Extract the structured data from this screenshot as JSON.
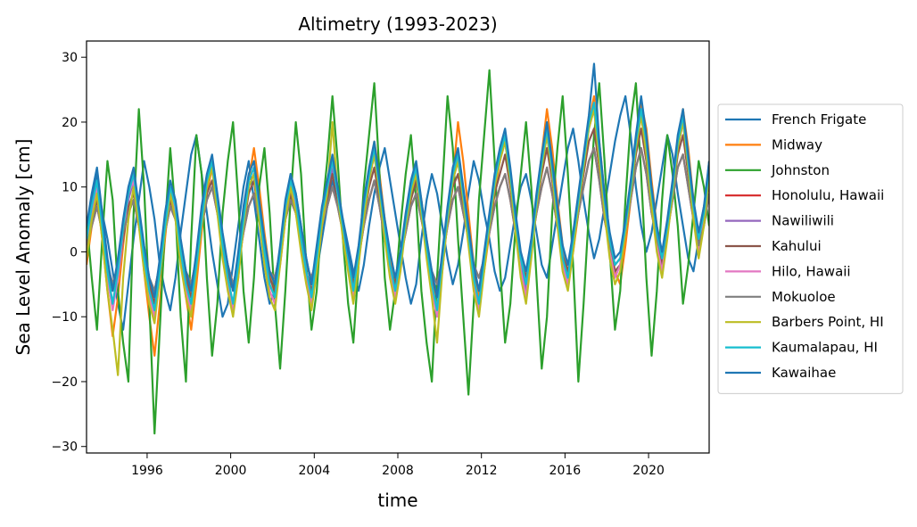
{
  "chart_data": {
    "type": "line",
    "title": "Altimetry (1993-2023)",
    "xlabel": "time",
    "ylabel": "Sea Level Anomaly [cm]",
    "x_start": 1993.1,
    "x_end": 2022.9,
    "xlim": [
      1993.1,
      2022.9
    ],
    "ylim": [
      -31,
      32.5
    ],
    "xticks": [
      1996,
      2000,
      2004,
      2008,
      2012,
      2016,
      2020
    ],
    "xtick_labels": [
      "1996",
      "2000",
      "2004",
      "2008",
      "2012",
      "2016",
      "2020"
    ],
    "yticks": [
      -30,
      -20,
      -10,
      0,
      10,
      20,
      30
    ],
    "ytick_labels": [
      "−30",
      "−20",
      "−10",
      "0",
      "10",
      "20",
      "30"
    ],
    "grid": false,
    "legend_position": "right-outside",
    "series": [
      {
        "name": "French Frigate",
        "color": "#1f77b4",
        "values": [
          3,
          8,
          12,
          6,
          2,
          -3,
          -8,
          -12,
          -5,
          2,
          8,
          14,
          10,
          5,
          -2,
          -6,
          -9,
          -4,
          3,
          9,
          15,
          18,
          12,
          6,
          0,
          -5,
          -10,
          -8,
          -2,
          4,
          10,
          14,
          8,
          2,
          -4,
          -8,
          -6,
          0,
          6,
          12,
          9,
          4,
          -1,
          -5,
          -3,
          2,
          7,
          11,
          8,
          5,
          1,
          -3,
          -6,
          -2,
          4,
          9,
          13,
          16,
          11,
          6,
          1,
          -4,
          -8,
          -5,
          2,
          8,
          12,
          9,
          4,
          -1,
          -5,
          -2,
          3,
          9,
          14,
          11,
          6,
          2,
          -3,
          -6,
          -4,
          1,
          6,
          10,
          12,
          8,
          3,
          -2,
          -4,
          1,
          6,
          11,
          16,
          19,
          14,
          8,
          3,
          -1,
          2,
          7,
          12,
          17,
          21,
          24,
          18,
          10,
          4,
          0,
          3,
          8,
          13,
          18,
          15,
          9,
          4,
          -1,
          -3,
          2,
          7,
          11
        ]
      },
      {
        "name": "Midway",
        "color": "#ff7f0e",
        "values": [
          -2,
          4,
          9,
          2,
          -6,
          -13,
          -7,
          1,
          8,
          12,
          6,
          -3,
          -10,
          -16,
          -8,
          2,
          10,
          6,
          -1,
          -7,
          -12,
          -5,
          3,
          9,
          13,
          7,
          1,
          -5,
          -9,
          -4,
          4,
          11,
          16,
          10,
          3,
          -3,
          -7,
          -2,
          5,
          9,
          6,
          2,
          -4,
          -8,
          -3,
          4,
          10,
          14,
          9,
          3,
          -2,
          -6,
          0,
          7,
          12,
          17,
          12,
          5,
          -1,
          -5,
          -2,
          4,
          9,
          13,
          8,
          2,
          -4,
          -9,
          -3,
          5,
          11,
          20,
          14,
          6,
          -2,
          -7,
          -3,
          3,
          9,
          14,
          18,
          12,
          4,
          -3,
          -6,
          1,
          8,
          15,
          22,
          16,
          8,
          1,
          -4,
          0,
          6,
          13,
          20,
          24,
          17,
          9,
          2,
          -3,
          -5,
          1,
          8,
          16,
          23,
          19,
          11,
          4,
          -2,
          3,
          10,
          17,
          22,
          16,
          8,
          2,
          6,
          14
        ]
      },
      {
        "name": "Johnston",
        "color": "#2ca02c",
        "values": [
          5,
          -4,
          -12,
          2,
          14,
          8,
          -6,
          -14,
          -20,
          6,
          22,
          10,
          -8,
          -28,
          -12,
          4,
          16,
          6,
          -10,
          -20,
          2,
          18,
          12,
          -4,
          -16,
          -8,
          6,
          14,
          20,
          8,
          -6,
          -14,
          -4,
          10,
          16,
          6,
          -8,
          -18,
          -6,
          8,
          20,
          12,
          -2,
          -12,
          -6,
          6,
          14,
          24,
          14,
          2,
          -8,
          -14,
          -2,
          10,
          18,
          26,
          12,
          -4,
          -12,
          -6,
          4,
          12,
          18,
          8,
          -6,
          -14,
          -20,
          -4,
          10,
          24,
          16,
          2,
          -10,
          -22,
          -8,
          8,
          18,
          28,
          14,
          -2,
          -14,
          -8,
          4,
          12,
          20,
          10,
          -4,
          -18,
          -10,
          6,
          16,
          24,
          12,
          -2,
          -20,
          -8,
          6,
          18,
          26,
          14,
          0,
          -12,
          -6,
          8,
          20,
          26,
          12,
          -4,
          -16,
          -6,
          8,
          18,
          12,
          4,
          -8,
          -2,
          6,
          14,
          10,
          4
        ]
      },
      {
        "name": "Honolulu, Hawaii",
        "color": "#d62728",
        "values": [
          1,
          4,
          7,
          3,
          -2,
          -5,
          -2,
          3,
          6,
          8,
          4,
          0,
          -4,
          -6,
          -2,
          3,
          7,
          5,
          1,
          -3,
          -5,
          -1,
          4,
          8,
          10,
          6,
          2,
          -2,
          -5,
          -2,
          3,
          7,
          9,
          5,
          1,
          -3,
          -4,
          0,
          5,
          8,
          6,
          2,
          -2,
          -4,
          -1,
          4,
          7,
          10,
          7,
          3,
          -1,
          -4,
          -1,
          4,
          8,
          11,
          7,
          2,
          -2,
          -4,
          -1,
          3,
          7,
          9,
          5,
          1,
          -3,
          -5,
          -1,
          4,
          8,
          10,
          6,
          2,
          -2,
          -4,
          -1,
          3,
          7,
          10,
          12,
          8,
          3,
          -1,
          -3,
          1,
          6,
          10,
          13,
          9,
          4,
          0,
          -2,
          1,
          6,
          10,
          14,
          16,
          11,
          5,
          1,
          -2,
          -1,
          3,
          8,
          13,
          16,
          12,
          6,
          2,
          -1,
          3,
          8,
          13,
          15,
          10,
          5,
          1,
          4,
          9
        ]
      },
      {
        "name": "Nawiliwili",
        "color": "#9467bd",
        "values": [
          2,
          6,
          10,
          4,
          -3,
          -8,
          -4,
          2,
          8,
          11,
          5,
          -1,
          -6,
          -10,
          -4,
          3,
          9,
          6,
          0,
          -5,
          -9,
          -3,
          4,
          10,
          13,
          7,
          1,
          -4,
          -8,
          -3,
          4,
          10,
          12,
          6,
          0,
          -5,
          -7,
          -1,
          6,
          10,
          7,
          2,
          -3,
          -7,
          -2,
          5,
          9,
          13,
          8,
          3,
          -2,
          -6,
          -1,
          6,
          11,
          15,
          9,
          3,
          -2,
          -6,
          -2,
          4,
          9,
          12,
          6,
          0,
          -5,
          -9,
          -2,
          5,
          11,
          14,
          8,
          2,
          -4,
          -8,
          -2,
          4,
          10,
          14,
          17,
          11,
          4,
          -2,
          -6,
          0,
          7,
          13,
          18,
          12,
          5,
          -1,
          -4,
          1,
          7,
          13,
          19,
          22,
          15,
          7,
          1,
          -3,
          -2,
          3,
          9,
          16,
          21,
          16,
          8,
          2,
          -2,
          3,
          9,
          16,
          20,
          13,
          6,
          1,
          5,
          12
        ]
      },
      {
        "name": "Kahului",
        "color": "#8c564b",
        "values": [
          1,
          5,
          8,
          3,
          -2,
          -6,
          -3,
          2,
          7,
          9,
          4,
          -1,
          -5,
          -8,
          -3,
          3,
          8,
          5,
          0,
          -4,
          -7,
          -2,
          4,
          9,
          11,
          6,
          1,
          -3,
          -6,
          -2,
          4,
          9,
          11,
          5,
          0,
          -4,
          -6,
          -1,
          5,
          9,
          6,
          2,
          -3,
          -6,
          -2,
          4,
          8,
          12,
          8,
          3,
          -1,
          -5,
          -1,
          5,
          10,
          13,
          8,
          3,
          -2,
          -5,
          -1,
          4,
          8,
          11,
          6,
          1,
          -4,
          -7,
          -2,
          5,
          10,
          12,
          7,
          2,
          -3,
          -6,
          -1,
          4,
          9,
          12,
          15,
          10,
          4,
          -1,
          -4,
          1,
          7,
          12,
          16,
          11,
          5,
          0,
          -3,
          1,
          7,
          12,
          17,
          19,
          13,
          6,
          1,
          -3,
          -2,
          3,
          9,
          15,
          19,
          14,
          7,
          2,
          -2,
          3,
          9,
          15,
          18,
          12,
          6,
          1,
          5,
          11
        ]
      },
      {
        "name": "Hilo, Hawaii",
        "color": "#e377c2",
        "values": [
          0,
          6,
          10,
          4,
          -4,
          -9,
          -4,
          3,
          9,
          11,
          5,
          -2,
          -7,
          -10,
          -3,
          4,
          10,
          6,
          -1,
          -6,
          -9,
          -2,
          5,
          11,
          14,
          7,
          0,
          -5,
          -9,
          -3,
          5,
          11,
          13,
          6,
          -1,
          -6,
          -8,
          -1,
          6,
          11,
          7,
          1,
          -4,
          -8,
          -2,
          5,
          10,
          14,
          9,
          3,
          -2,
          -7,
          -1,
          6,
          12,
          16,
          10,
          3,
          -3,
          -7,
          -2,
          5,
          10,
          13,
          7,
          0,
          -6,
          -10,
          -2,
          6,
          12,
          15,
          9,
          2,
          -5,
          -9,
          -2,
          5,
          11,
          15,
          18,
          12,
          4,
          -3,
          -7,
          0,
          8,
          14,
          19,
          13,
          5,
          -2,
          -5,
          1,
          8,
          14,
          20,
          23,
          15,
          7,
          0,
          -4,
          -2,
          4,
          10,
          17,
          22,
          16,
          8,
          1,
          -3,
          3,
          10,
          17,
          21,
          14,
          6,
          0,
          5,
          13
        ]
      },
      {
        "name": "Mokuoloe",
        "color": "#7f7f7f",
        "values": [
          1,
          4,
          7,
          3,
          -2,
          -5,
          -2,
          3,
          6,
          8,
          4,
          0,
          -4,
          -6,
          -2,
          3,
          7,
          5,
          1,
          -3,
          -5,
          -1,
          4,
          8,
          10,
          6,
          2,
          -2,
          -5,
          -2,
          3,
          7,
          9,
          5,
          1,
          -3,
          -4,
          0,
          5,
          8,
          6,
          2,
          -2,
          -4,
          -1,
          4,
          7,
          10,
          7,
          3,
          -1,
          -4,
          -1,
          4,
          8,
          11,
          7,
          2,
          -2,
          -4,
          -1,
          3,
          7,
          9,
          5,
          1,
          -3,
          -5,
          -1,
          4,
          8,
          10,
          6,
          2,
          -2,
          -4,
          -1,
          3,
          7,
          10,
          12,
          8,
          3,
          -1,
          -3,
          1,
          6,
          10,
          13,
          9,
          4,
          0,
          -2,
          1,
          6,
          10,
          14,
          16,
          11,
          5,
          1,
          -2,
          -1,
          3,
          8,
          13,
          16,
          12,
          6,
          2,
          -1,
          3,
          8,
          13,
          15,
          10,
          5,
          1,
          4,
          9
        ]
      },
      {
        "name": "Barbers Point, HI",
        "color": "#bcbd22",
        "values": [
          -1,
          5,
          9,
          2,
          -6,
          -12,
          -19,
          -4,
          5,
          10,
          4,
          -3,
          -8,
          -11,
          -4,
          3,
          9,
          5,
          -2,
          -7,
          -10,
          -3,
          4,
          10,
          13,
          6,
          -1,
          -6,
          -10,
          -4,
          4,
          10,
          12,
          5,
          -2,
          -7,
          -9,
          -2,
          5,
          10,
          6,
          0,
          -5,
          -9,
          -3,
          4,
          9,
          20,
          9,
          2,
          -3,
          -8,
          -2,
          5,
          11,
          15,
          9,
          2,
          -4,
          -8,
          -3,
          4,
          9,
          12,
          6,
          -1,
          -7,
          -14,
          -3,
          5,
          11,
          14,
          8,
          1,
          -6,
          -10,
          -3,
          4,
          10,
          14,
          17,
          11,
          3,
          -4,
          -8,
          -1,
          7,
          13,
          18,
          12,
          4,
          -3,
          -6,
          0,
          7,
          13,
          19,
          22,
          14,
          6,
          -1,
          -5,
          -3,
          3,
          9,
          16,
          21,
          15,
          7,
          0,
          -4,
          2,
          9,
          16,
          20,
          13,
          5,
          -1,
          4,
          12
        ]
      },
      {
        "name": "Kaumalapau, HI",
        "color": "#17becf",
        "values": [
          2,
          7,
          11,
          4,
          -3,
          -8,
          -3,
          4,
          9,
          12,
          6,
          -1,
          -6,
          -9,
          -3,
          4,
          10,
          7,
          0,
          -5,
          -8,
          -2,
          5,
          11,
          14,
          8,
          1,
          -4,
          -8,
          -2,
          5,
          11,
          13,
          7,
          0,
          -5,
          -7,
          0,
          7,
          11,
          8,
          2,
          -3,
          -7,
          -1,
          6,
          10,
          14,
          9,
          4,
          -1,
          -6,
          0,
          7,
          12,
          16,
          10,
          4,
          -2,
          -6,
          -1,
          5,
          10,
          13,
          7,
          1,
          -5,
          -9,
          -1,
          6,
          12,
          15,
          9,
          3,
          -4,
          -8,
          -1,
          5,
          11,
          15,
          18,
          12,
          5,
          -1,
          -5,
          1,
          8,
          14,
          19,
          13,
          6,
          -1,
          -4,
          2,
          8,
          14,
          20,
          23,
          16,
          8,
          2,
          -2,
          -1,
          4,
          10,
          17,
          22,
          17,
          9,
          3,
          -1,
          4,
          10,
          17,
          21,
          14,
          7,
          2,
          6,
          13
        ]
      },
      {
        "name": "Kawaihae",
        "color": "#1f77b4",
        "values": [
          4,
          9,
          13,
          6,
          -1,
          -6,
          -1,
          5,
          10,
          13,
          7,
          1,
          -4,
          -7,
          -1,
          6,
          11,
          8,
          2,
          -3,
          -6,
          0,
          7,
          12,
          15,
          9,
          3,
          -2,
          -6,
          0,
          7,
          12,
          14,
          8,
          2,
          -3,
          -5,
          1,
          8,
          12,
          9,
          4,
          -1,
          -5,
          1,
          7,
          11,
          15,
          10,
          5,
          0,
          -4,
          1,
          8,
          13,
          17,
          11,
          5,
          0,
          -4,
          0,
          6,
          11,
          14,
          8,
          2,
          -3,
          -7,
          0,
          7,
          13,
          16,
          10,
          4,
          -2,
          -6,
          0,
          6,
          12,
          16,
          19,
          13,
          6,
          0,
          -3,
          2,
          9,
          15,
          20,
          14,
          7,
          1,
          -2,
          3,
          9,
          15,
          21,
          29,
          17,
          9,
          3,
          -1,
          0,
          5,
          11,
          18,
          24,
          18,
          10,
          4,
          0,
          5,
          11,
          18,
          22,
          15,
          8,
          3,
          7,
          14
        ]
      }
    ]
  }
}
